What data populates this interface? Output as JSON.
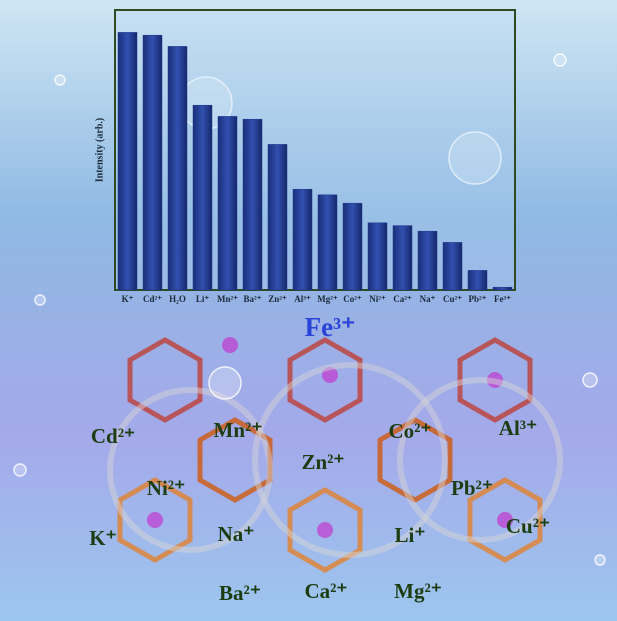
{
  "chart_data": {
    "type": "bar",
    "y_label": "Intensity (arb.)",
    "categories": [
      "K⁺",
      "Cd²⁺",
      "H₂O",
      "Li⁺",
      "Mn²⁺",
      "Ba²⁺",
      "Zn²⁺",
      "Al³⁺",
      "Mg²⁺",
      "Co²⁺",
      "Ni²⁺",
      "Ca²⁺",
      "Na⁺",
      "Cu²⁺",
      "Pb²⁺",
      "Fe³⁺"
    ],
    "values": [
      92,
      91,
      87,
      66,
      62,
      61,
      52,
      36,
      34,
      31,
      24,
      23,
      21,
      17,
      7,
      1
    ],
    "color": "#1f3a8c",
    "ylim": [
      0,
      100
    ]
  },
  "highlight_label": "Fe³⁺",
  "ion_labels": [
    "Cd²⁺",
    "Mn²⁺",
    "Co²⁺",
    "Al³⁺",
    "Zn²⁺",
    "Ni²⁺",
    "Pb²⁺",
    "K⁺",
    "Na⁺",
    "Li⁺",
    "Cu²⁺",
    "Ba²⁺",
    "Ca²⁺",
    "Mg²⁺"
  ]
}
